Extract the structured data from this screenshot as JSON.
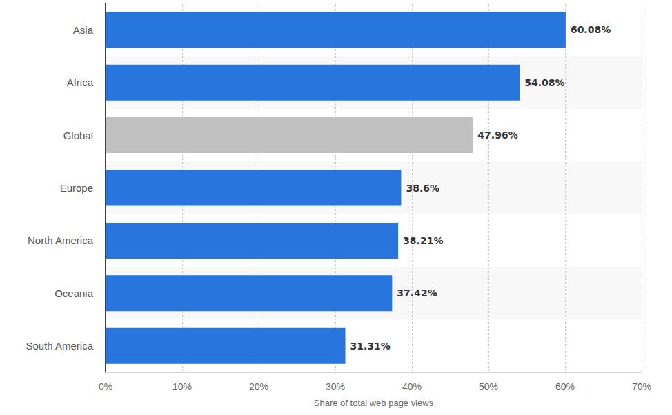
{
  "chart_data": {
    "type": "bar",
    "orientation": "horizontal",
    "categories": [
      "Asia",
      "Africa",
      "Global",
      "Europe",
      "North America",
      "Oceania",
      "South America"
    ],
    "values": [
      60.08,
      54.08,
      47.96,
      38.6,
      38.21,
      37.42,
      31.31
    ],
    "value_labels": [
      "60.08%",
      "54.08%",
      "47.96%",
      "38.6%",
      "38.21%",
      "37.42%",
      "31.31%"
    ],
    "colors": [
      "#2876dd",
      "#2876dd",
      "#c0c0c0",
      "#2876dd",
      "#2876dd",
      "#2876dd",
      "#2876dd"
    ],
    "x_label": "Share of total web page views",
    "xlim": [
      0,
      70
    ],
    "xticks": [
      {
        "value": 0,
        "label": "0%"
      },
      {
        "value": 10,
        "label": "10%"
      },
      {
        "value": 20,
        "label": "20%"
      },
      {
        "value": 30,
        "label": "30%"
      },
      {
        "value": 40,
        "label": "40%"
      },
      {
        "value": 50,
        "label": "50%"
      },
      {
        "value": 60,
        "label": "60%"
      },
      {
        "value": 70,
        "label": "70%"
      }
    ],
    "grid": true,
    "data_labels": true
  }
}
